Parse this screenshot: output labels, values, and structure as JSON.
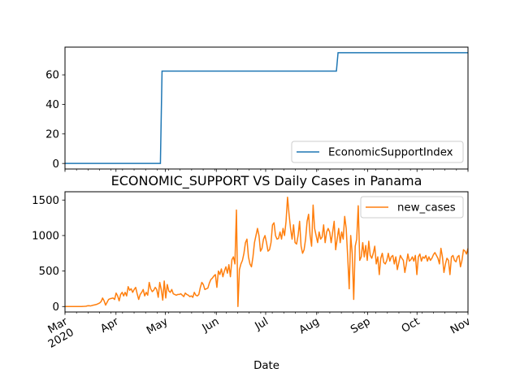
{
  "chart_data": [
    {
      "type": "line",
      "title": "",
      "xlabel": "",
      "ylabel": "",
      "x_range": [
        "2020-03-01",
        "2020-11-01"
      ],
      "ylim": [
        -3.75,
        78.75
      ],
      "yticks": [
        0,
        20,
        40,
        60
      ],
      "legend_position": "lower right",
      "series": [
        {
          "name": "EconomicSupportIndex",
          "color": "#1f77b4",
          "step": true,
          "points": [
            [
              "2020-03-01",
              0
            ],
            [
              "2020-04-28",
              0
            ],
            [
              "2020-04-29",
              62.5
            ],
            [
              "2020-08-13",
              62.5
            ],
            [
              "2020-08-14",
              75
            ],
            [
              "2020-11-01",
              75
            ]
          ]
        }
      ]
    },
    {
      "type": "line",
      "title": "ECONOMIC_SUPPORT VS Daily Cases in Panama",
      "xlabel": "Date",
      "ylabel": "",
      "x_range": [
        "2020-03-01",
        "2020-11-01"
      ],
      "ylim": [
        -77,
        1617
      ],
      "yticks": [
        0,
        500,
        1000,
        1500
      ],
      "xticks": [
        {
          "date": "2020-03-01",
          "label": "Mar",
          "label2": "2020"
        },
        {
          "date": "2020-04-01",
          "label": "Apr"
        },
        {
          "date": "2020-05-01",
          "label": "May"
        },
        {
          "date": "2020-06-01",
          "label": "Jun"
        },
        {
          "date": "2020-07-01",
          "label": "Jul"
        },
        {
          "date": "2020-08-01",
          "label": "Aug"
        },
        {
          "date": "2020-09-01",
          "label": "Sep"
        },
        {
          "date": "2020-10-01",
          "label": "Oct"
        },
        {
          "date": "2020-11-01",
          "label": "Nov"
        }
      ],
      "legend_position": "upper right",
      "series": [
        {
          "name": "new_cases",
          "color": "#ff7f0e",
          "start_date": "2020-03-01",
          "values": [
            0,
            0,
            0,
            0,
            0,
            0,
            0,
            0,
            0,
            0,
            1,
            0,
            2,
            3,
            5,
            10,
            12,
            8,
            15,
            20,
            25,
            30,
            40,
            50,
            70,
            120,
            80,
            20,
            60,
            100,
            110,
            115,
            120,
            100,
            190,
            150,
            80,
            170,
            200,
            150,
            200,
            150,
            280,
            230,
            250,
            200,
            240,
            270,
            180,
            100,
            170,
            200,
            240,
            150,
            200,
            160,
            340,
            250,
            210,
            230,
            270,
            240,
            130,
            340,
            240,
            90,
            360,
            120,
            310,
            220,
            200,
            240,
            180,
            170,
            160,
            170,
            170,
            180,
            160,
            140,
            190,
            170,
            160,
            140,
            150,
            130,
            200,
            160,
            150,
            170,
            270,
            340,
            310,
            240,
            250,
            260,
            330,
            380,
            400,
            430,
            450,
            270,
            500,
            450,
            530,
            420,
            500,
            560,
            470,
            590,
            420,
            660,
            700,
            600,
            1360,
            0,
            520,
            600,
            650,
            750,
            900,
            950,
            700,
            600,
            560,
            700,
            900,
            1000,
            1100,
            1000,
            780,
            820,
            950,
            1000,
            900,
            780,
            800,
            900,
            1150,
            1180,
            1000,
            950,
            960,
            1050,
            950,
            1100,
            1000,
            1200,
            1540,
            1300,
            1100,
            950,
            1150,
            900,
            880,
            1000,
            1200,
            850,
            750,
            800,
            950,
            1200,
            1300,
            1000,
            850,
            1430,
            1100,
            1000,
            900,
            1050,
            950,
            980,
            1150,
            900,
            1050,
            1100,
            1050,
            900,
            1050,
            1200,
            800,
            950,
            1100,
            900,
            1050,
            950,
            1270,
            1100,
            700,
            250,
            1000,
            750,
            100,
            850,
            950,
            1420,
            650,
            700,
            900,
            700,
            860,
            650,
            920,
            720,
            680,
            750,
            850,
            600,
            700,
            450,
            680,
            750,
            620,
            600,
            650,
            750,
            640,
            700,
            720,
            600,
            700,
            520,
            620,
            720,
            680,
            650,
            480,
            600,
            740,
            640,
            660,
            700,
            640,
            720,
            450,
            700,
            740,
            640,
            700,
            680,
            720,
            640,
            700,
            650,
            680,
            730,
            760,
            720,
            680,
            600,
            820,
            700,
            480,
            600,
            680,
            650,
            450,
            700,
            720,
            650,
            630,
            700,
            720,
            560,
            650,
            800,
            780,
            740,
            820
          ]
        }
      ]
    }
  ]
}
